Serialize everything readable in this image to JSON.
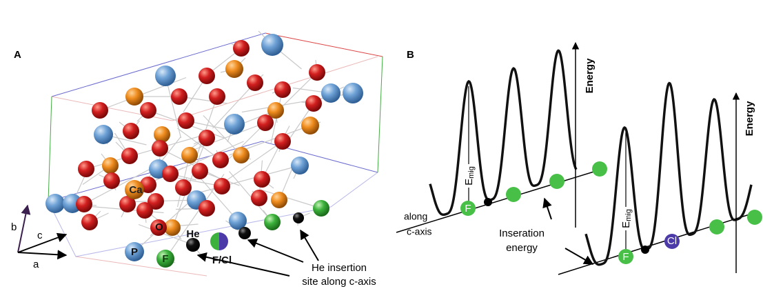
{
  "panel_a": {
    "label": "A",
    "atom_labels": {
      "ca": "Ca",
      "o": "O",
      "p": "P",
      "f": "F",
      "he": "He",
      "f_cl": "F/Cl"
    },
    "axes": {
      "a": "a",
      "b": "b",
      "c": "c"
    },
    "annotation": [
      "He insertion",
      "site along c-axis"
    ]
  },
  "panel_b": {
    "label": "B",
    "energy_axis": "Energy",
    "migration_energy": {
      "symbol": "E",
      "subscript": "mig"
    },
    "axis_label": [
      "along",
      "c-axis"
    ],
    "insertion_label": [
      "Inseration",
      "energy"
    ],
    "ion_labels": {
      "f": "F",
      "cl": "Cl"
    }
  }
}
